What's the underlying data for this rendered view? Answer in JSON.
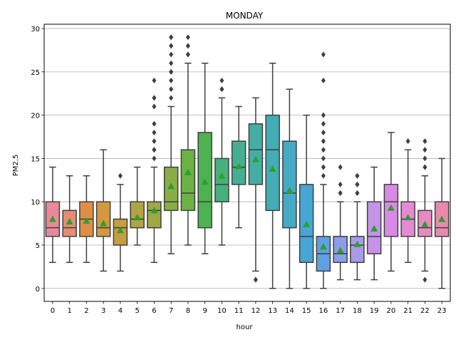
{
  "chart_data": {
    "type": "box",
    "title": "MONDAY",
    "xlabel": "hour",
    "ylabel": "PM2.5",
    "ylim": [
      -1.5,
      30.5
    ],
    "yticks": [
      0,
      5,
      10,
      15,
      20,
      25,
      30
    ],
    "grid": "horizontal",
    "mean_marker_color": "#2ca02c",
    "categories": [
      "0",
      "1",
      "2",
      "3",
      "4",
      "5",
      "6",
      "7",
      "8",
      "9",
      "10",
      "11",
      "12",
      "13",
      "14",
      "15",
      "16",
      "17",
      "18",
      "19",
      "20",
      "21",
      "22",
      "23"
    ],
    "boxes": [
      {
        "hour": "0",
        "color": "#e8899a",
        "whislo": 3,
        "q1": 6,
        "med": 7,
        "q3": 10,
        "whishi": 14,
        "mean": 8.0,
        "fliers": []
      },
      {
        "hour": "1",
        "color": "#e48c74",
        "whislo": 3,
        "q1": 6,
        "med": 7,
        "q3": 9,
        "whishi": 13,
        "mean": 7.7,
        "fliers": []
      },
      {
        "hour": "2",
        "color": "#df8f44",
        "whislo": 3,
        "q1": 6,
        "med": 8,
        "q3": 10,
        "whishi": 13,
        "mean": 7.8,
        "fliers": []
      },
      {
        "hour": "3",
        "color": "#d59840",
        "whislo": 2,
        "q1": 6,
        "med": 7,
        "q3": 10,
        "whishi": 16,
        "mean": 7.5,
        "fliers": []
      },
      {
        "hour": "4",
        "color": "#c39f40",
        "whislo": 2,
        "q1": 5,
        "med": 7,
        "q3": 8,
        "whishi": 12,
        "mean": 6.7,
        "fliers": [
          13
        ]
      },
      {
        "hour": "5",
        "color": "#b1a443",
        "whislo": 5,
        "q1": 7,
        "med": 8,
        "q3": 10,
        "whishi": 14,
        "mean": 8.2,
        "fliers": []
      },
      {
        "hour": "6",
        "color": "#9ea845",
        "whislo": 3,
        "q1": 7,
        "med": 9,
        "q3": 10,
        "whishi": 14,
        "mean": 9.0,
        "fliers": [
          15,
          16,
          16,
          17,
          18,
          19,
          21,
          22,
          22,
          24
        ]
      },
      {
        "hour": "7",
        "color": "#89ad45",
        "whislo": 4,
        "q1": 9,
        "med": 10,
        "q3": 14,
        "whishi": 21,
        "mean": 11.8,
        "fliers": [
          22,
          23,
          24,
          25,
          25,
          26,
          27,
          28,
          28,
          29,
          29
        ]
      },
      {
        "hour": "8",
        "color": "#6bb245",
        "whislo": 5,
        "q1": 9,
        "med": 11,
        "q3": 16,
        "whishi": 26,
        "mean": 13.4,
        "fliers": [
          27,
          27,
          28,
          28,
          29
        ]
      },
      {
        "hour": "9",
        "color": "#4db352",
        "whislo": 4,
        "q1": 7,
        "med": 10,
        "q3": 18,
        "whishi": 26,
        "mean": 12.3,
        "fliers": []
      },
      {
        "hour": "10",
        "color": "#47b17b",
        "whislo": 5,
        "q1": 10,
        "med": 12,
        "q3": 15,
        "whishi": 22,
        "mean": 13.0,
        "fliers": [
          23,
          23,
          24
        ]
      },
      {
        "hour": "11",
        "color": "#46af93",
        "whislo": 7,
        "q1": 12,
        "med": 14,
        "q3": 17,
        "whishi": 21,
        "mean": 14.1,
        "fliers": []
      },
      {
        "hour": "12",
        "color": "#44aea4",
        "whislo": 2,
        "q1": 12,
        "med": 16,
        "q3": 19,
        "whishi": 22,
        "mean": 14.9,
        "fliers": [
          1,
          1
        ]
      },
      {
        "hour": "13",
        "color": "#43acb5",
        "whislo": 0,
        "q1": 9,
        "med": 16,
        "q3": 20,
        "whishi": 26,
        "mean": 13.8,
        "fliers": []
      },
      {
        "hour": "14",
        "color": "#45aac4",
        "whislo": 0,
        "q1": 7,
        "med": 11,
        "q3": 17,
        "whishi": 23,
        "mean": 11.3,
        "fliers": []
      },
      {
        "hour": "15",
        "color": "#48a6d4",
        "whislo": 0,
        "q1": 3,
        "med": 6,
        "q3": 12,
        "whishi": 20,
        "mean": 7.4,
        "fliers": []
      },
      {
        "hour": "16",
        "color": "#5fa0e2",
        "whislo": 0,
        "q1": 2,
        "med": 4,
        "q3": 6,
        "whishi": 12,
        "mean": 4.8,
        "fliers": [
          13,
          14,
          14,
          15,
          16,
          17,
          18,
          19,
          20,
          24,
          27
        ]
      },
      {
        "hour": "17",
        "color": "#8a9ee9",
        "whislo": 1,
        "q1": 3,
        "med": 4,
        "q3": 6,
        "whishi": 10,
        "mean": 4.4,
        "fliers": [
          11,
          11,
          12,
          14
        ]
      },
      {
        "hour": "18",
        "color": "#a99be8",
        "whislo": 1,
        "q1": 3,
        "med": 5,
        "q3": 6,
        "whishi": 10,
        "mean": 5.1,
        "fliers": [
          11,
          11,
          12,
          12,
          13,
          13
        ]
      },
      {
        "hour": "19",
        "color": "#c493e7",
        "whislo": 1,
        "q1": 4,
        "med": 6,
        "q3": 10,
        "whishi": 14,
        "mean": 6.9,
        "fliers": []
      },
      {
        "hour": "20",
        "color": "#da8ae6",
        "whislo": 2,
        "q1": 6,
        "med": 10,
        "q3": 12,
        "whishi": 18,
        "mean": 9.3,
        "fliers": []
      },
      {
        "hour": "21",
        "color": "#e48ad5",
        "whislo": 3,
        "q1": 6,
        "med": 8,
        "q3": 10,
        "whishi": 16,
        "mean": 8.2,
        "fliers": [
          17
        ]
      },
      {
        "hour": "22",
        "color": "#e88ac1",
        "whislo": 2,
        "q1": 6,
        "med": 7,
        "q3": 9,
        "whishi": 13,
        "mean": 7.4,
        "fliers": [
          1,
          14,
          14,
          15,
          16,
          17
        ]
      },
      {
        "hour": "23",
        "color": "#e98aad",
        "whislo": 0,
        "q1": 6,
        "med": 7,
        "q3": 10,
        "whishi": 15,
        "mean": 8.0,
        "fliers": []
      }
    ]
  }
}
